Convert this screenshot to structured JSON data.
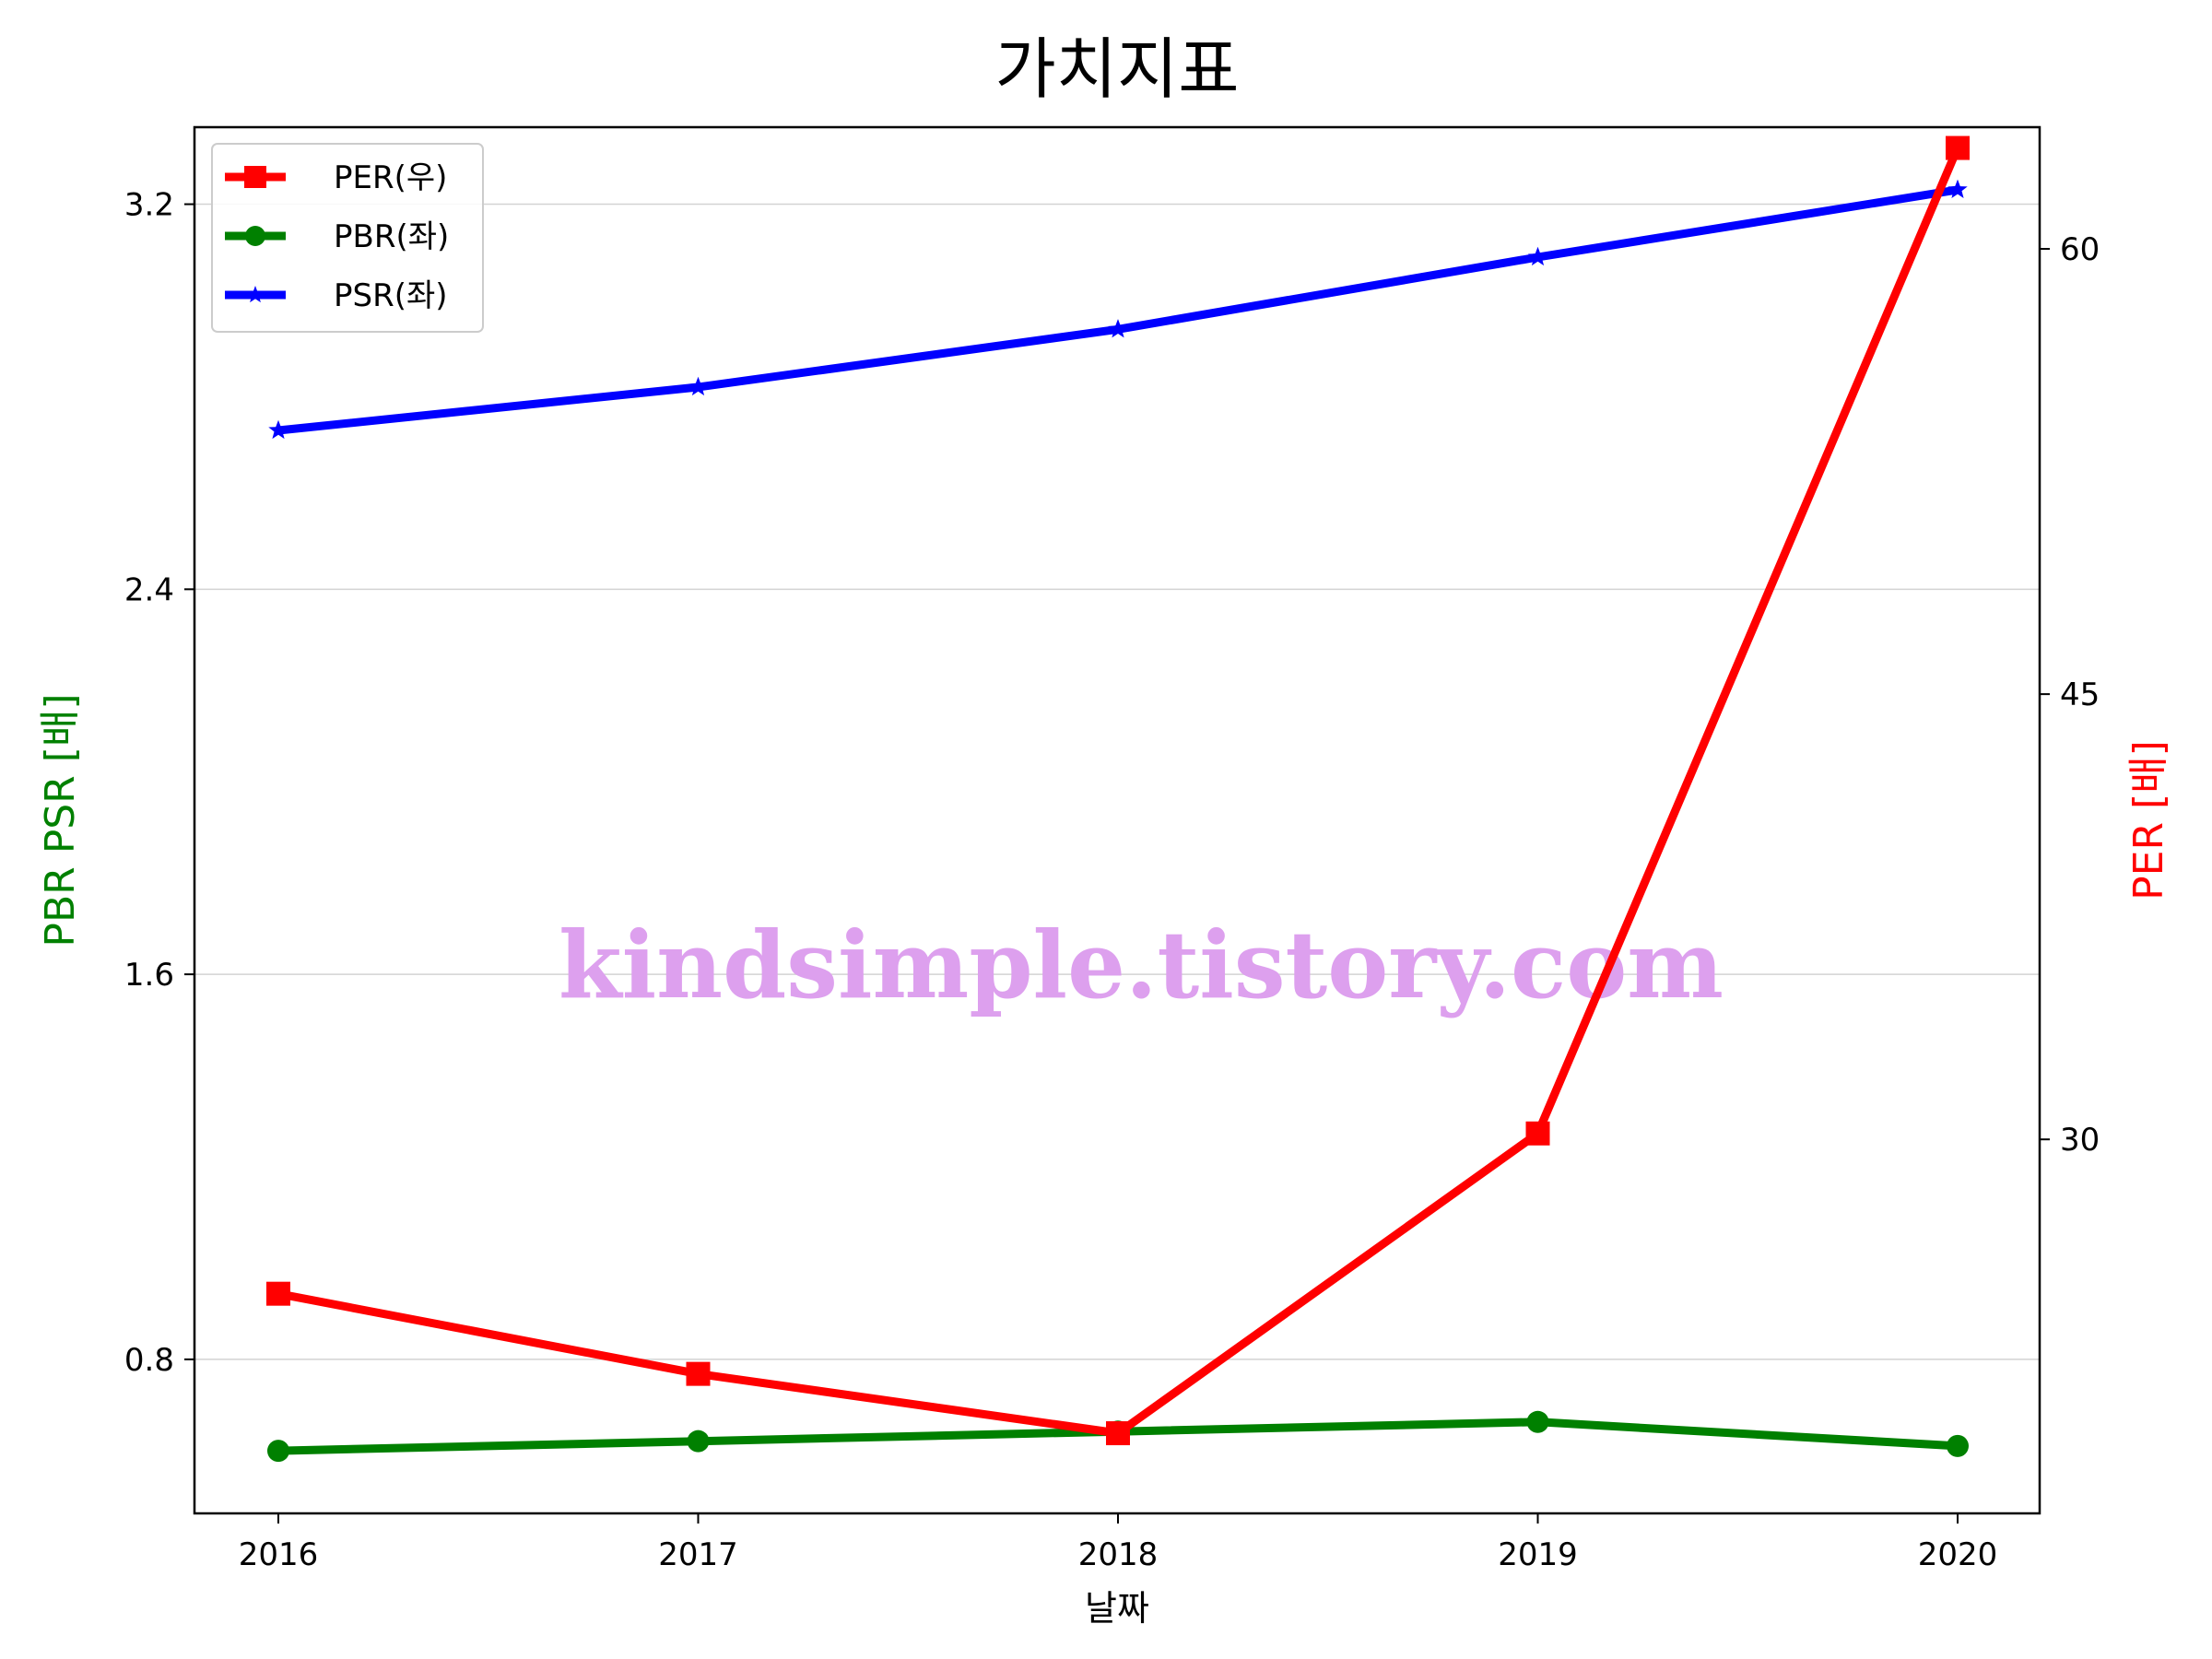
{
  "chart_data": {
    "type": "line",
    "title": "가치지표",
    "xlabel": "날짜",
    "ylabel_left": "PBR PSR [배]",
    "ylabel_right": "PER [배]",
    "categories": [
      "2016",
      "2017",
      "2018",
      "2019",
      "2020"
    ],
    "left_axis": {
      "ylim": [
        0.48,
        3.36
      ],
      "ticks": [
        0.8,
        1.6,
        2.4,
        3.2
      ],
      "tick_labels": [
        "0.8",
        "1.6",
        "2.4",
        "3.2"
      ]
    },
    "right_axis": {
      "ylim": [
        17.4,
        64.1
      ],
      "ticks": [
        30,
        45,
        60
      ],
      "tick_labels": [
        "30",
        "45",
        "60"
      ]
    },
    "series": [
      {
        "name": "PER(우)",
        "axis": "right",
        "color": "#ff0000",
        "marker": "square",
        "values": [
          24.8,
          22.1,
          20.1,
          30.2,
          63.4
        ]
      },
      {
        "name": "PBR(좌)",
        "axis": "left",
        "color": "#008000",
        "marker": "circle",
        "values": [
          0.61,
          0.63,
          0.65,
          0.67,
          0.62
        ]
      },
      {
        "name": "PSR(좌)",
        "axis": "left",
        "color": "#0000ff",
        "marker": "star",
        "values": [
          2.73,
          2.82,
          2.94,
          3.09,
          3.23
        ]
      }
    ],
    "grid": "horizontal",
    "legend_position": "top-left",
    "watermark": "kindsimple.tistory.com",
    "watermark_color": "#dda0ee",
    "axis_title_colors": {
      "left": "#008000",
      "right": "#ff0000"
    }
  }
}
